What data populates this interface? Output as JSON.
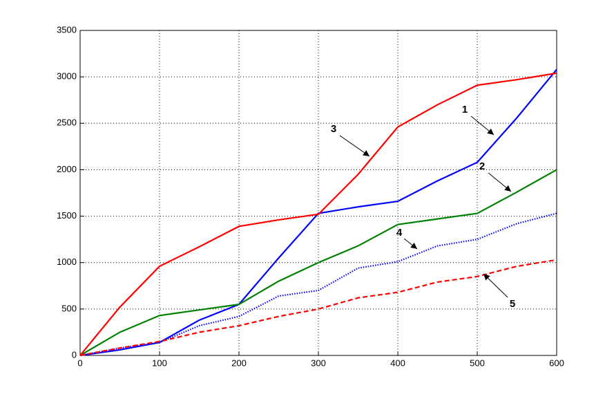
{
  "chart_data": {
    "type": "line",
    "x": [
      0,
      50,
      100,
      150,
      200,
      250,
      300,
      350,
      400,
      450,
      500,
      550,
      600
    ],
    "series": [
      {
        "name": "1",
        "color": "#0000ff",
        "style": "solid",
        "values": [
          0,
          60,
          140,
          380,
          550,
          1050,
          1530,
          1600,
          1660,
          1880,
          2080,
          2560,
          3080
        ]
      },
      {
        "name": "2",
        "color": "#008000",
        "style": "solid",
        "values": [
          0,
          250,
          430,
          490,
          550,
          800,
          1000,
          1180,
          1410,
          1470,
          1530,
          1760,
          2000
        ]
      },
      {
        "name": "3",
        "color": "#ff0000",
        "style": "solid",
        "values": [
          0,
          520,
          960,
          1170,
          1390,
          1460,
          1520,
          1950,
          2460,
          2700,
          2910,
          2970,
          3040
        ]
      },
      {
        "name": "4",
        "color": "#0000ff",
        "style": "dotted",
        "values": [
          0,
          80,
          140,
          320,
          420,
          640,
          700,
          940,
          1010,
          1180,
          1250,
          1420,
          1530
        ]
      },
      {
        "name": "5",
        "color": "#ff0000",
        "style": "dashed",
        "values": [
          0,
          80,
          150,
          250,
          320,
          420,
          500,
          620,
          680,
          790,
          850,
          960,
          1030
        ]
      }
    ],
    "xlim": [
      0,
      600
    ],
    "xticks": [
      0,
      100,
      200,
      300,
      400,
      500,
      600
    ],
    "ylim": [
      0,
      3500
    ],
    "yticks": [
      0,
      500,
      1000,
      1500,
      2000,
      2500,
      3000,
      3500
    ],
    "grid": true
  }
}
